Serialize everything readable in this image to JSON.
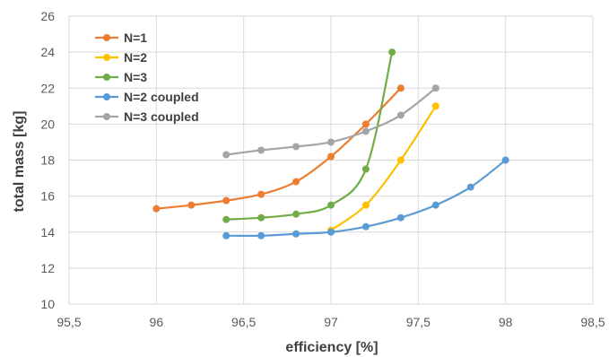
{
  "chart_data": {
    "type": "line",
    "title": "",
    "xlabel": "efficiency [%]",
    "ylabel": "total mass [kg]",
    "xlim": [
      95.5,
      98.5
    ],
    "ylim": [
      10,
      26
    ],
    "xticks": [
      95.5,
      96,
      96.5,
      97,
      97.5,
      98,
      98.5
    ],
    "xtick_labels": [
      "95,5",
      "96",
      "96,5",
      "97",
      "97,5",
      "98",
      "98,5"
    ],
    "yticks": [
      10,
      12,
      14,
      16,
      18,
      20,
      22,
      24,
      26
    ],
    "ytick_labels": [
      "10",
      "12",
      "14",
      "16",
      "18",
      "20",
      "22",
      "24",
      "26"
    ],
    "grid": true,
    "legend_position": "top-left",
    "series": [
      {
        "name": "N=1",
        "color": "#ED7D31",
        "x": [
          96.0,
          96.2,
          96.4,
          96.6,
          96.8,
          97.0,
          97.2,
          97.4
        ],
        "y": [
          15.3,
          15.5,
          15.75,
          16.1,
          16.8,
          18.2,
          20.0,
          22.0
        ]
      },
      {
        "name": "N=2",
        "color": "#FFC000",
        "x": [
          97.0,
          97.2,
          97.4,
          97.6
        ],
        "y": [
          14.1,
          15.5,
          18.0,
          21.0
        ]
      },
      {
        "name": "N=3",
        "color": "#70AD47",
        "x": [
          96.4,
          96.6,
          96.8,
          97.0,
          97.2,
          97.35
        ],
        "y": [
          14.7,
          14.8,
          15.0,
          15.5,
          17.5,
          24.0
        ]
      },
      {
        "name": "N=2 coupled",
        "color": "#5B9BD5",
        "x": [
          96.4,
          96.6,
          96.8,
          97.0,
          97.2,
          97.4,
          97.6,
          97.8,
          98.0
        ],
        "y": [
          13.8,
          13.8,
          13.9,
          14.0,
          14.3,
          14.8,
          15.5,
          16.5,
          18.0
        ]
      },
      {
        "name": "N=3 coupled",
        "color": "#A5A5A5",
        "x": [
          96.4,
          96.6,
          96.8,
          97.0,
          97.2,
          97.4,
          97.6
        ],
        "y": [
          18.3,
          18.55,
          18.75,
          19.0,
          19.6,
          20.5,
          22.0
        ]
      }
    ]
  }
}
